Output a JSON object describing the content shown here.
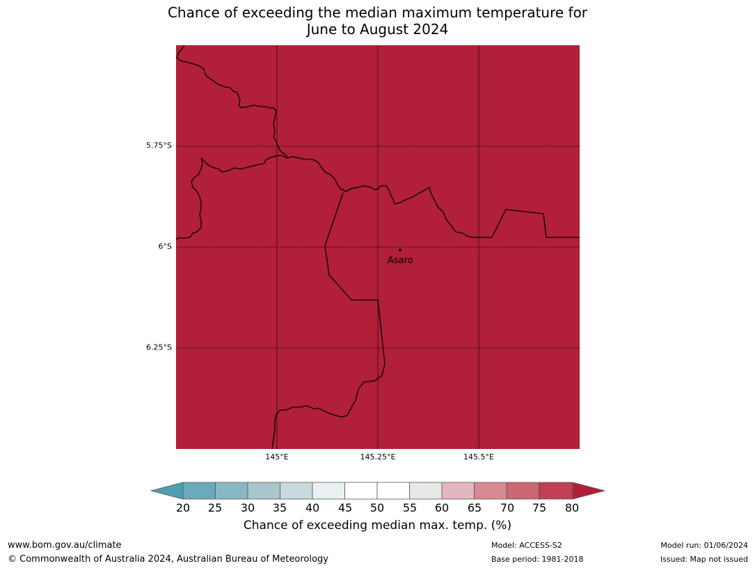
{
  "title": {
    "line1": "Chance of exceeding the median maximum temperature for",
    "line2": "June to August 2024"
  },
  "map": {
    "fill_color": "#b11f38",
    "lat_labels": [
      "5.75°S",
      "6°S",
      "6.25°S"
    ],
    "lon_labels": [
      "145°E",
      "145.25°E",
      "145.5°E"
    ],
    "place": "Asaro"
  },
  "colorbar": {
    "label": "Chance of exceeding median max. temp. (%)",
    "ticks": [
      "20",
      "25",
      "30",
      "35",
      "40",
      "45",
      "50",
      "55",
      "60",
      "65",
      "70",
      "75",
      "80"
    ],
    "colors": [
      "#4f9fb2",
      "#6aaabb",
      "#8ab7c4",
      "#a9c6cd",
      "#c9dade",
      "#e9f0f2",
      "#ffffff",
      "#ffffff",
      "#e8e8e8",
      "#e2b7bd",
      "#d88a94",
      "#cc6774",
      "#c03f52",
      "#b11f38"
    ]
  },
  "footer": {
    "url": "www.bom.gov.au/climate",
    "copyright": "© Commonwealth of Australia 2024, Australian Bureau of Meteorology",
    "model": "Model: ACCESS-S2",
    "base_period": "Base period: 1981-2018",
    "model_run": "Model run: 01/06/2024",
    "issued": "Issued: Map not issued"
  }
}
